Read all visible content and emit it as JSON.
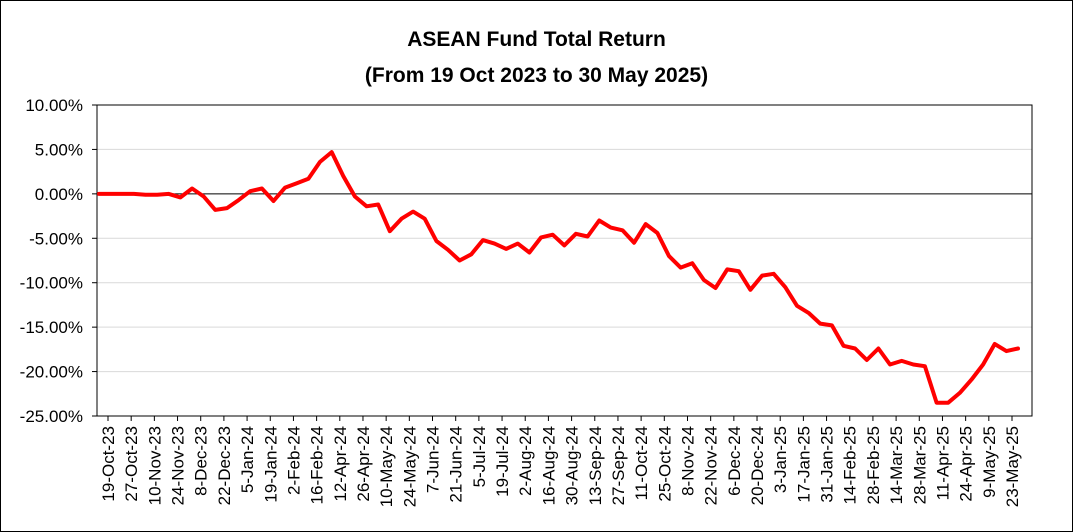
{
  "chart_data": {
    "type": "line",
    "title": "ASEAN Fund Total Return",
    "subtitle": "(From 19 Oct 2023 to 30 May 2025)",
    "xlabel": "",
    "ylabel": "",
    "ylim": [
      -25,
      10
    ],
    "y_ticks": [
      "10.00%",
      "5.00%",
      "0.00%",
      "-5.00%",
      "-10.00%",
      "-15.00%",
      "-20.00%",
      "-25.00%"
    ],
    "y_tick_values": [
      10,
      5,
      0,
      -5,
      -10,
      -15,
      -20,
      -25
    ],
    "x_tick_labels": [
      "19-Oct-23",
      "27-Oct-23",
      "10-Nov-23",
      "24-Nov-23",
      "8-Dec-23",
      "22-Dec-23",
      "5-Jan-24",
      "19-Jan-24",
      "2-Feb-24",
      "16-Feb-24",
      "12-Apr-24",
      "26-Apr-24",
      "10-May-24",
      "24-May-24",
      "7-Jun-24",
      "21-Jun-24",
      "5-Jul-24",
      "19-Jul-24",
      "2-Aug-24",
      "16-Aug-24",
      "30-Aug-24",
      "13-Sep-24",
      "27-Sep-24",
      "11-Oct-24",
      "25-Oct-24",
      "8-Nov-24",
      "22-Nov-24",
      "6-Dec-24",
      "20-Dec-24",
      "3-Jan-25",
      "17-Jan-25",
      "31-Jan-25",
      "14-Feb-25",
      "28-Feb-25",
      "14-Mar-25",
      "28-Mar-25",
      "11-Apr-25",
      "24-Apr-25",
      "9-May-25",
      "23-May-25"
    ],
    "grid": true,
    "line_color": "#ff0000",
    "series": [
      {
        "values": [
          0.0,
          0.0,
          0.0,
          0.0,
          -0.1,
          -0.1,
          0.0,
          -0.4,
          0.6,
          -0.3,
          -1.8,
          -1.6,
          -0.7,
          0.3,
          0.6,
          -0.8,
          0.7,
          1.2,
          1.7,
          3.6,
          4.7,
          2.0,
          -0.3,
          -1.4,
          -1.2,
          -4.2,
          -2.8,
          -2.0,
          -2.8,
          -5.3,
          -6.3,
          -7.5,
          -6.8,
          -5.2,
          -5.6,
          -6.2,
          -5.6,
          -6.6,
          -4.9,
          -4.6,
          -5.8,
          -4.5,
          -4.8,
          -3.0,
          -3.8,
          -4.1,
          -5.5,
          -3.4,
          -4.4,
          -7.0,
          -8.3,
          -7.8,
          -9.7,
          -10.6,
          -8.5,
          -8.7,
          -10.8,
          -9.2,
          -9.0,
          -10.5,
          -12.6,
          -13.4,
          -14.6,
          -14.8,
          -17.1,
          -17.4,
          -18.7,
          -17.4,
          -19.2,
          -18.8,
          -19.2,
          -19.4,
          -23.5,
          -23.5,
          -22.4,
          -20.9,
          -19.2,
          -16.9,
          -17.7,
          -17.4
        ]
      }
    ]
  }
}
